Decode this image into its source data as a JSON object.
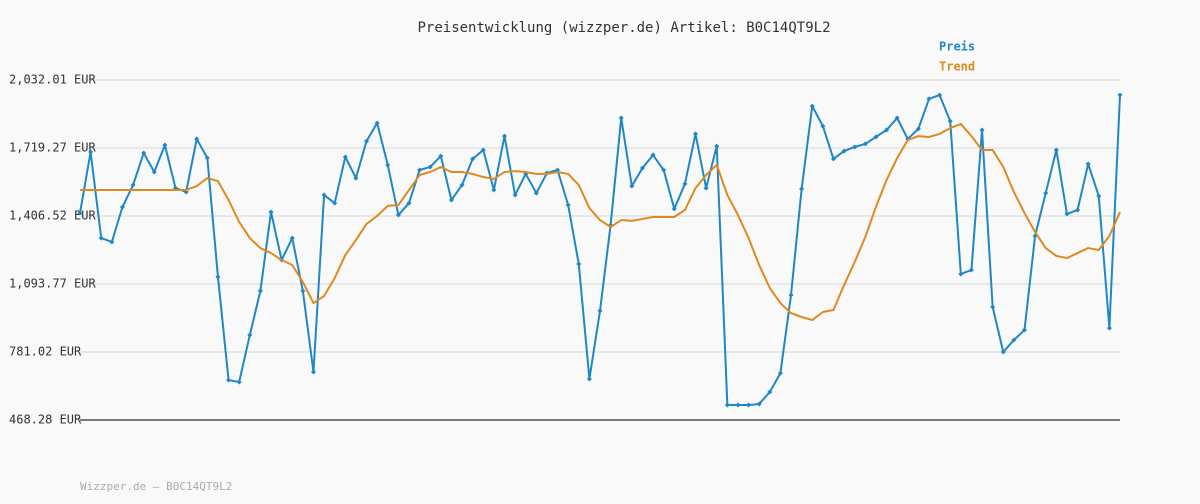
{
  "chart_data": {
    "type": "line",
    "title": "Preisentwicklung (wizzper.de) Artikel: B0C14QT9L2",
    "footer": "Wizzper.de – B0C14QT9L2",
    "ylim": [
      468.28,
      2032.01
    ],
    "yticks": [
      {
        "value": 468.28,
        "label": "468.28 EUR"
      },
      {
        "value": 781.02,
        "label": "781.02 EUR"
      },
      {
        "value": 1093.77,
        "label": "1,093.77 EUR"
      },
      {
        "value": 1406.52,
        "label": "1,406.52 EUR"
      },
      {
        "value": 1719.27,
        "label": "1,719.27 EUR"
      },
      {
        "value": 2032.01,
        "label": "2,032.01 EUR"
      }
    ],
    "grid": true,
    "legend": "top-right",
    "series": [
      {
        "name": "Preis",
        "color": "#1f87c5",
        "markers": true,
        "values": [
          1420,
          1701,
          1305,
          1287,
          1448,
          1549,
          1696,
          1609,
          1733,
          1535,
          1517,
          1761,
          1673,
          1126,
          652,
          643,
          859,
          1062,
          1425,
          1204,
          1305,
          1062,
          689,
          1503,
          1466,
          1678,
          1581,
          1751,
          1834,
          1641,
          1411,
          1466,
          1618,
          1632,
          1682,
          1480,
          1549,
          1669,
          1710,
          1526,
          1774,
          1503,
          1600,
          1512,
          1604,
          1618,
          1457,
          1186,
          657,
          970,
          1365,
          1857,
          1544,
          1627,
          1687,
          1618,
          1439,
          1554,
          1784,
          1535,
          1728,
          537,
          537,
          537,
          542,
          597,
          684,
          1043,
          1531,
          1912,
          1820,
          1669,
          1705,
          1724,
          1738,
          1770,
          1802,
          1857,
          1761,
          1807,
          1945,
          1963,
          1843,
          1140,
          1158,
          1802,
          988,
          781,
          836,
          882,
          1315,
          1512,
          1710,
          1416,
          1434,
          1646,
          1498,
          891,
          1963
        ]
      },
      {
        "name": "Trend",
        "color": "#e0891f",
        "markers": false,
        "values": [
          1526,
          1526,
          1526,
          1526,
          1526,
          1526,
          1526,
          1526,
          1526,
          1526,
          1526,
          1544,
          1581,
          1567,
          1480,
          1379,
          1305,
          1259,
          1236,
          1204,
          1181,
          1103,
          1006,
          1039,
          1121,
          1227,
          1296,
          1370,
          1407,
          1453,
          1457,
          1526,
          1595,
          1609,
          1632,
          1609,
          1609,
          1600,
          1586,
          1577,
          1609,
          1613,
          1609,
          1600,
          1600,
          1609,
          1600,
          1549,
          1443,
          1388,
          1356,
          1388,
          1384,
          1393,
          1402,
          1402,
          1402,
          1434,
          1535,
          1595,
          1641,
          1503,
          1411,
          1305,
          1181,
          1075,
          1006,
          960,
          942,
          928,
          965,
          974,
          1089,
          1195,
          1310,
          1448,
          1572,
          1673,
          1756,
          1774,
          1770,
          1784,
          1811,
          1830,
          1774,
          1710,
          1710,
          1632,
          1517,
          1420,
          1333,
          1259,
          1223,
          1213,
          1236,
          1259,
          1250,
          1315,
          1425
        ]
      }
    ]
  }
}
